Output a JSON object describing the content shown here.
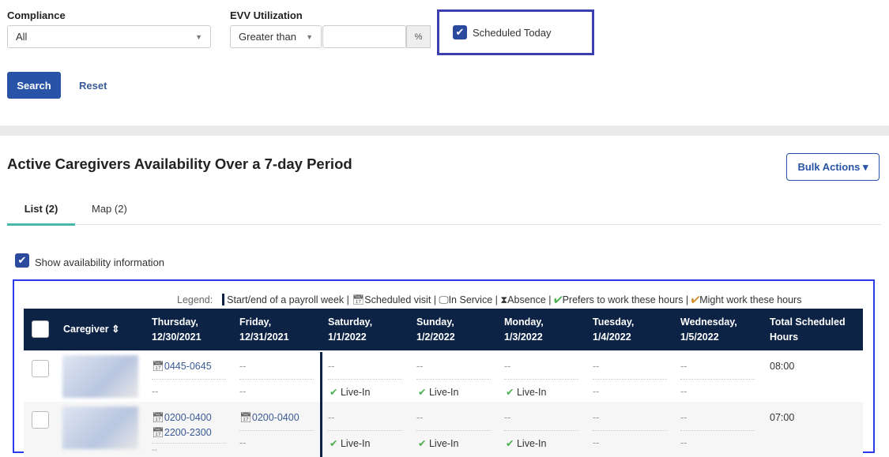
{
  "filters": {
    "compliance": {
      "label": "Compliance",
      "value": "All"
    },
    "evv": {
      "label": "EVV Utilization",
      "operator": "Greater than",
      "value": "",
      "unit": "%"
    },
    "scheduled_today": {
      "label": "Scheduled Today",
      "checked": true
    },
    "search_label": "Search",
    "reset_label": "Reset"
  },
  "section": {
    "title": "Active Caregivers Availability Over a 7-day Period",
    "bulk_actions": "Bulk Actions ▾"
  },
  "tabs": [
    {
      "label": "List (2)",
      "active": true
    },
    {
      "label": "Map (2)"
    }
  ],
  "show_availability": {
    "label": "Show availability information",
    "checked": true
  },
  "legend": {
    "title": "Legend:",
    "items": [
      "Start/end of a payroll week",
      "Scheduled visit",
      "In Service",
      "Absence",
      "Prefers to work these hours",
      "Might work these hours"
    ]
  },
  "table": {
    "headers": [
      "Caregiver ⇕",
      "Thursday,\n12/30/2021",
      "Friday,\n12/31/2021",
      "Saturday,\n1/1/2022",
      "Sunday,\n1/2/2022",
      "Monday,\n1/3/2022",
      "Tuesday,\n1/4/2022",
      "Wednesday,\n1/5/2022",
      "Total Scheduled\nHours"
    ],
    "rows": [
      {
        "days": [
          [
            "0445-0645",
            "--"
          ],
          [
            "--",
            "--"
          ],
          [
            "--",
            "Live-In"
          ],
          [
            "--",
            "Live-In"
          ],
          [
            "--",
            "Live-In"
          ],
          [
            "--",
            "--"
          ],
          [
            "--",
            "--"
          ]
        ],
        "total": "08:00"
      },
      {
        "days": [
          [
            "0200-0400\n2200-2300",
            "--"
          ],
          [
            "0200-0400",
            "--"
          ],
          [
            "--",
            "Live-In"
          ],
          [
            "--",
            "Live-In"
          ],
          [
            "--",
            "Live-In"
          ],
          [
            "--",
            "--"
          ],
          [
            "--",
            "--"
          ]
        ],
        "total": "07:00"
      }
    ]
  },
  "colors": {
    "header_bg": "#0c2345",
    "accent": "#2953a6",
    "tab_underline": "#4db6ac",
    "highlight": "#3b3fb0"
  }
}
